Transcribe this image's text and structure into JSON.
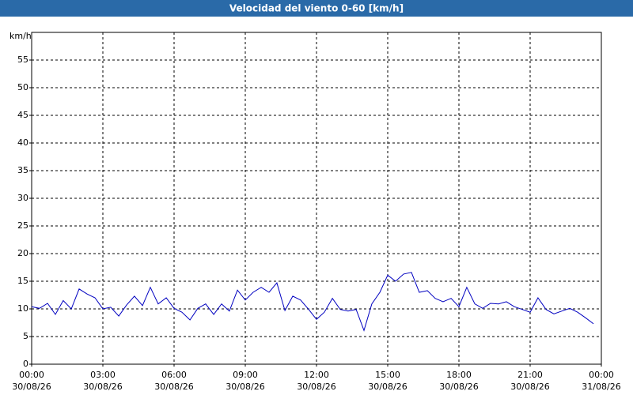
{
  "chart_data": {
    "type": "line",
    "title": "Velocidad del viento 0-60 [km/h]",
    "y_label": "km/h",
    "x": [
      0,
      0.33,
      0.67,
      1,
      1.33,
      1.67,
      2,
      2.33,
      2.67,
      3,
      3.33,
      3.67,
      4,
      4.33,
      4.67,
      5,
      5.33,
      5.67,
      6,
      6.33,
      6.67,
      7,
      7.33,
      7.67,
      8,
      8.33,
      8.67,
      9,
      9.33,
      9.67,
      10,
      10.33,
      10.67,
      11,
      11.33,
      11.67,
      12,
      12.33,
      12.67,
      13,
      13.33,
      13.67,
      14,
      14.33,
      14.67,
      15,
      15.33,
      15.67,
      16,
      16.33,
      16.67,
      17,
      17.33,
      17.67,
      18,
      18.33,
      18.67,
      19,
      19.33,
      19.67,
      20,
      20.33,
      20.67,
      21,
      21.33,
      21.67,
      22,
      22.33,
      22.67,
      23,
      23.33,
      23.67
    ],
    "series": [
      {
        "name": "Velocidad del viento",
        "color": "#0000c0",
        "values": [
          10.4,
          10.1,
          11,
          9,
          11.5,
          10,
          13.6,
          12.7,
          12,
          10,
          10.3,
          8.7,
          10.7,
          12.3,
          10.6,
          13.9,
          10.9,
          12,
          10.1,
          9.4,
          8,
          10.1,
          10.9,
          9,
          10.9,
          9.6,
          13.4,
          11.6,
          13,
          13.9,
          13,
          14.7,
          9.7,
          12.3,
          11.6,
          9.9,
          8.1,
          9.4,
          11.9,
          9.9,
          9.6,
          9.9,
          6.1,
          10.9,
          13,
          16.1,
          15,
          16.3,
          16.6,
          13,
          13.3,
          11.9,
          11.3,
          11.9,
          10.4,
          13.9,
          10.9,
          10.1,
          11,
          10.9,
          11.3,
          10.4,
          9.9,
          9.4,
          12,
          9.9,
          9.1,
          9.6,
          10.1,
          9.4,
          8.4,
          7.3
        ]
      }
    ],
    "xlim": [
      0,
      24
    ],
    "xticks": [
      {
        "value": 0,
        "label": "00:00",
        "date": "30/08/26"
      },
      {
        "value": 3,
        "label": "03:00",
        "date": "30/08/26"
      },
      {
        "value": 6,
        "label": "06:00",
        "date": "30/08/26"
      },
      {
        "value": 9,
        "label": "09:00",
        "date": "30/08/26"
      },
      {
        "value": 12,
        "label": "12:00",
        "date": "30/08/26"
      },
      {
        "value": 15,
        "label": "15:00",
        "date": "30/08/26"
      },
      {
        "value": 18,
        "label": "18:00",
        "date": "30/08/26"
      },
      {
        "value": 21,
        "label": "21:00",
        "date": "30/08/26"
      },
      {
        "value": 24,
        "label": "00:00",
        "date": "31/08/26"
      }
    ],
    "ylim": [
      0,
      60
    ],
    "yticks": [
      0,
      5,
      10,
      15,
      20,
      25,
      30,
      35,
      40,
      45,
      50,
      55
    ],
    "grid": true
  }
}
